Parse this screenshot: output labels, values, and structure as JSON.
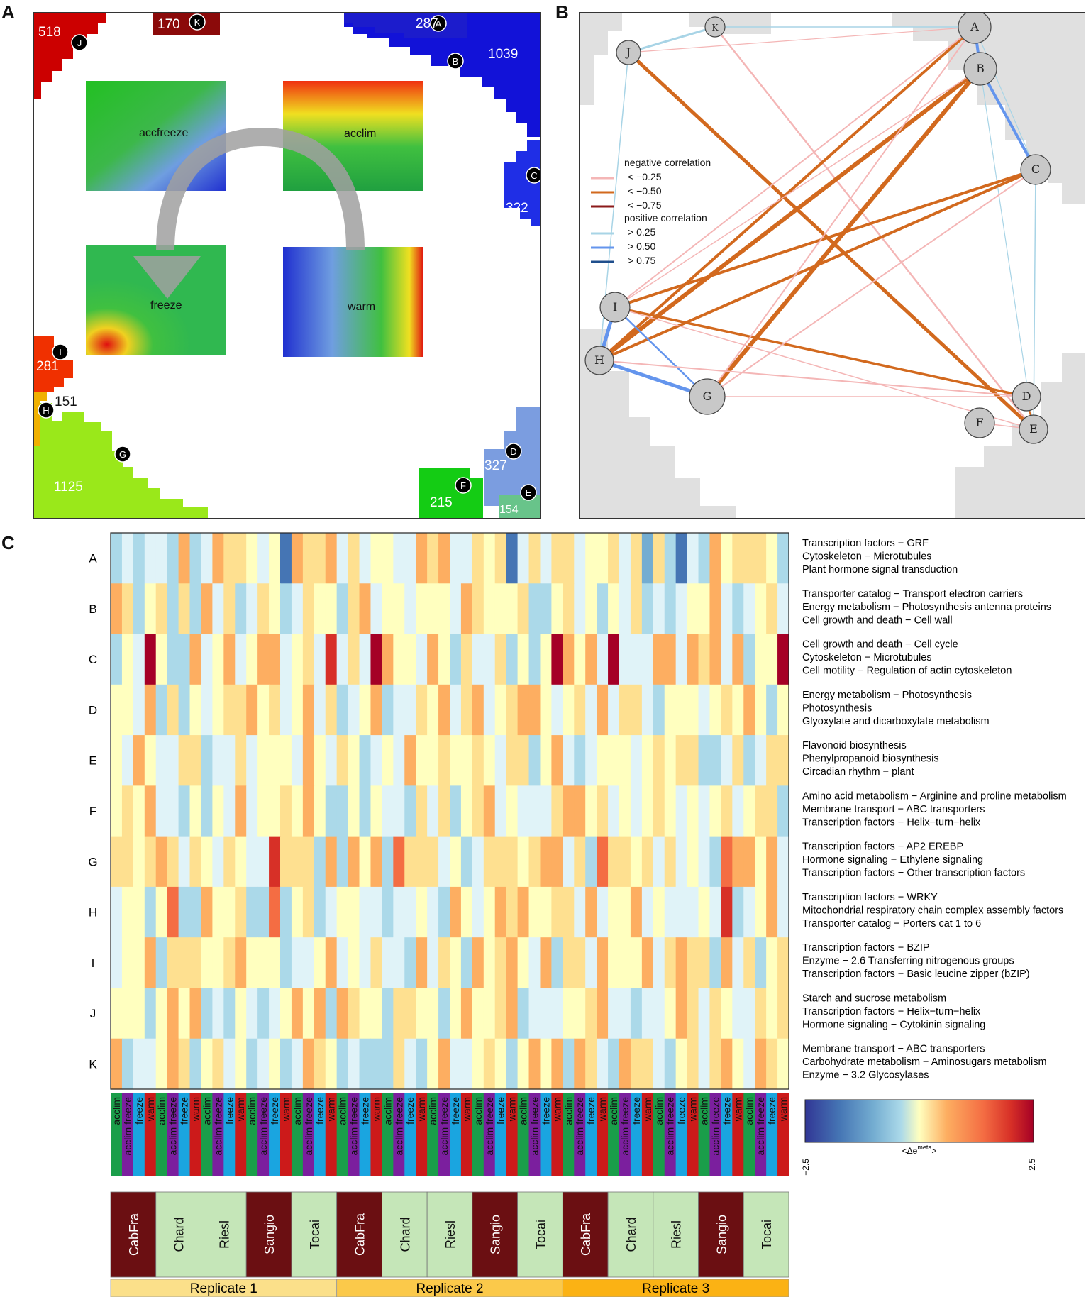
{
  "panel_labels": [
    "A",
    "B",
    "C"
  ],
  "panelA": {
    "clusters": [
      {
        "letter": "A",
        "count": "287",
        "color": "#1c1ccc"
      },
      {
        "letter": "B",
        "count": "1039",
        "color": "#1212d8"
      },
      {
        "letter": "C",
        "count": "322",
        "color": "#1f2ee6"
      },
      {
        "letter": "D",
        "count": "327",
        "color": "#7b9de0"
      },
      {
        "letter": "E",
        "count": "154",
        "color": "#68c48a"
      },
      {
        "letter": "F",
        "count": "215",
        "color": "#14cc14"
      },
      {
        "letter": "G",
        "count": "1125",
        "color": "#9ae81a"
      },
      {
        "letter": "H",
        "count": "151",
        "color": "#f0b000"
      },
      {
        "letter": "I",
        "count": "281",
        "color": "#f03000"
      },
      {
        "letter": "J",
        "count": "518",
        "color": "#cc0000"
      },
      {
        "letter": "K",
        "count": "170",
        "color": "#8b0a0a"
      }
    ],
    "maps": [
      "accfreeze",
      "acclim",
      "freeze",
      "warm"
    ]
  },
  "panelB": {
    "legend": {
      "negative_title": "negative correlation",
      "negative": [
        "< −0.25",
        "< −0.50",
        "< −0.75"
      ],
      "positive_title": "positive correlation",
      "positive": [
        "> 0.25",
        "> 0.50",
        "> 0.75"
      ],
      "negative_colors": [
        "#f4b6b6",
        "#d2691e",
        "#8b1a1a"
      ],
      "positive_colors": [
        "#a8d4e6",
        "#6495ed",
        "#1f4e8c"
      ]
    },
    "nodes": [
      "A",
      "B",
      "C",
      "D",
      "E",
      "F",
      "G",
      "H",
      "I",
      "J",
      "K"
    ]
  },
  "panelC": {
    "rows": [
      "A",
      "B",
      "C",
      "D",
      "E",
      "F",
      "G",
      "H",
      "I",
      "J",
      "K"
    ],
    "annotations": [
      [
        "Transcription factors − GRF",
        "Cytoskeleton − Microtubules",
        "Plant hormone signal transduction"
      ],
      [
        "Transporter catalog − Transport electron carriers",
        "Energy metabolism − Photosynthesis antenna proteins",
        "Cell growth and death − Cell wall"
      ],
      [
        "Cell growth and death − Cell cycle",
        "Cytoskeleton − Microtubules",
        "Cell motility − Regulation of actin cytoskeleton"
      ],
      [
        "Energy metabolism − Photosynthesis",
        "Photosynthesis",
        "Glyoxylate and dicarboxylate metabolism"
      ],
      [
        "Flavonoid biosynthesis",
        "Phenylpropanoid biosynthesis",
        "Circadian rhythm − plant"
      ],
      [
        "Amino acid metabolism − Arginine and proline metabolism",
        "Membrane transport − ABC transporters",
        "Transcription factors − Helix−turn−helix"
      ],
      [
        "Transcription factors − AP2 EREBP",
        "Hormone signaling − Ethylene signaling",
        "Transcription factors − Other transcription factors"
      ],
      [
        "Transcription factors − WRKY",
        "Mitochondrial respiratory chain complex assembly factors",
        "Transporter catalog − Porters cat 1 to 6"
      ],
      [
        "Transcription factors − BZIP",
        "Enzyme − 2.6  Transferring nitrogenous groups",
        "Transcription factors − Basic leucine zipper (bZIP)"
      ],
      [
        "Starch and sucrose metabolism",
        "Transcription factors − Helix−turn−helix",
        "Hormone signaling − Cytokinin signaling"
      ],
      [
        "Membrane transport − ABC transporters",
        "Carbohydrate metabolism − Aminosugars metabolism",
        "Enzyme − 3.2  Glycosylases"
      ]
    ],
    "conditions": [
      "acclim",
      "acclim freeze",
      "freeze",
      "warm"
    ],
    "condition_colors": [
      "#1a9e4a",
      "#7b1f9e",
      "#1aa5e0",
      "#cc1a1a"
    ],
    "cultivars": [
      "CabFra",
      "Chard",
      "Riesl",
      "Sangio",
      "Tocai"
    ],
    "cultivar_colors": [
      "#6b0f12",
      "#c5e6b8",
      "#c5e6b8",
      "#6b0f12",
      "#c5e6b8"
    ],
    "cultivar_text_colors": [
      "#ffffff",
      "#111111",
      "#111111",
      "#ffffff",
      "#111111"
    ],
    "replicates": [
      "Replicate 1",
      "Replicate 2",
      "Replicate 3"
    ],
    "replicate_colors": [
      "#fbe08a",
      "#fbc94a",
      "#fbb214"
    ],
    "colorbar": {
      "min": "−2.5",
      "max": "2.5",
      "label": "<Δe",
      "label_sup": "meta",
      "label_end": ">"
    }
  }
}
